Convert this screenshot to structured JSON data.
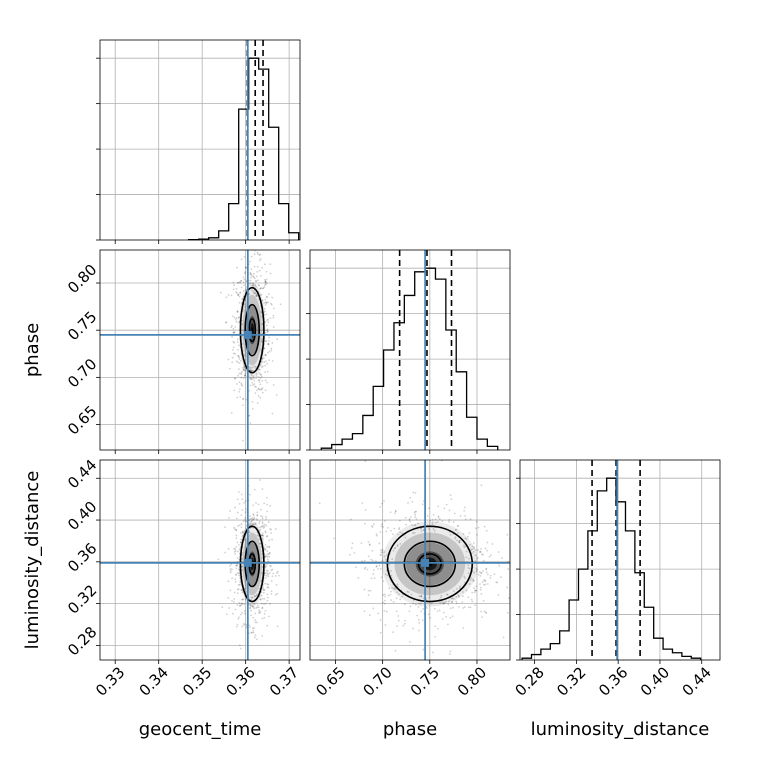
{
  "chart_data": {
    "type": "corner",
    "parameters": [
      "geocent_time",
      "phase",
      "luminosity_distance"
    ],
    "axis_labels": [
      "geocent_time",
      "phase",
      "luminosity_distance"
    ],
    "ticks": {
      "geocent_time": [
        0.33,
        0.34,
        0.35,
        0.36,
        0.37
      ],
      "phase": [
        0.65,
        0.7,
        0.75,
        0.8
      ],
      "luminosity_distance": [
        0.28,
        0.32,
        0.36,
        0.4,
        0.44
      ]
    },
    "tick_labels": {
      "geocent_time": [
        "0.33",
        "0.34",
        "0.35",
        "0.36",
        "0.37"
      ],
      "phase": [
        "0.65",
        "0.70",
        "0.75",
        "0.80"
      ],
      "luminosity_distance": [
        "0.28",
        "0.32",
        "0.36",
        "0.40",
        "0.44"
      ]
    },
    "ranges": {
      "geocent_time": [
        0.3265,
        0.3725
      ],
      "phase": [
        0.623,
        0.835
      ],
      "luminosity_distance": [
        0.266,
        0.4575
      ]
    },
    "truths": {
      "geocent_time": 0.3605,
      "phase": 0.745,
      "luminosity_distance": 0.359
    },
    "quantiles": {
      "geocent_time": [
        0.3604,
        0.3622,
        0.364
      ],
      "phase": [
        0.718,
        0.747,
        0.773
      ],
      "luminosity_distance": [
        0.335,
        0.358,
        0.381
      ]
    },
    "histograms": {
      "geocent_time": {
        "bin_edges": [
          0.3469,
          0.3492,
          0.3515,
          0.3538,
          0.3561,
          0.3584,
          0.3607,
          0.363,
          0.3653,
          0.3676,
          0.3699,
          0.3722
        ],
        "counts": [
          0.002,
          0.005,
          0.012,
          0.05,
          0.2,
          0.72,
          1.0,
          0.94,
          0.62,
          0.2,
          0.04
        ]
      },
      "phase": {
        "bin_edges": [
          0.635,
          0.646,
          0.657,
          0.668,
          0.679,
          0.69,
          0.701,
          0.712,
          0.723,
          0.734,
          0.745,
          0.756,
          0.767,
          0.778,
          0.789,
          0.8,
          0.811,
          0.822
        ],
        "counts": [
          0.01,
          0.03,
          0.06,
          0.09,
          0.19,
          0.35,
          0.55,
          0.7,
          0.85,
          0.98,
          1.0,
          0.94,
          0.66,
          0.43,
          0.18,
          0.06,
          0.02
        ]
      },
      "luminosity_distance": {
        "bin_edges": [
          0.268,
          0.277,
          0.286,
          0.295,
          0.304,
          0.313,
          0.322,
          0.331,
          0.34,
          0.349,
          0.358,
          0.367,
          0.376,
          0.385,
          0.394,
          0.403,
          0.412,
          0.421,
          0.43,
          0.439
        ],
        "counts": [
          0.01,
          0.03,
          0.06,
          0.09,
          0.16,
          0.33,
          0.5,
          0.71,
          0.93,
          1.0,
          0.87,
          0.71,
          0.48,
          0.29,
          0.12,
          0.06,
          0.04,
          0.02,
          0.01
        ]
      }
    },
    "contours_2d": {
      "phase_vs_geocent_time": {
        "center": [
          0.3615,
          0.75
        ],
        "sigma": [
          0.0018,
          0.03
        ],
        "levels": [
          0.4,
          0.9,
          1.5
        ]
      },
      "luminosity_distance_vs_geocent_time": {
        "center": [
          0.3615,
          0.358
        ],
        "sigma": [
          0.0018,
          0.024
        ],
        "levels": [
          0.4,
          0.9,
          1.5
        ]
      },
      "luminosity_distance_vs_phase": {
        "center": [
          0.75,
          0.358
        ],
        "sigma": [
          0.03,
          0.024
        ],
        "levels": [
          0.4,
          0.9,
          1.5
        ]
      }
    },
    "grid": true,
    "colors": {
      "truth": "#4682b4",
      "hist": "#000000",
      "grid": "#b0b0b0"
    }
  }
}
